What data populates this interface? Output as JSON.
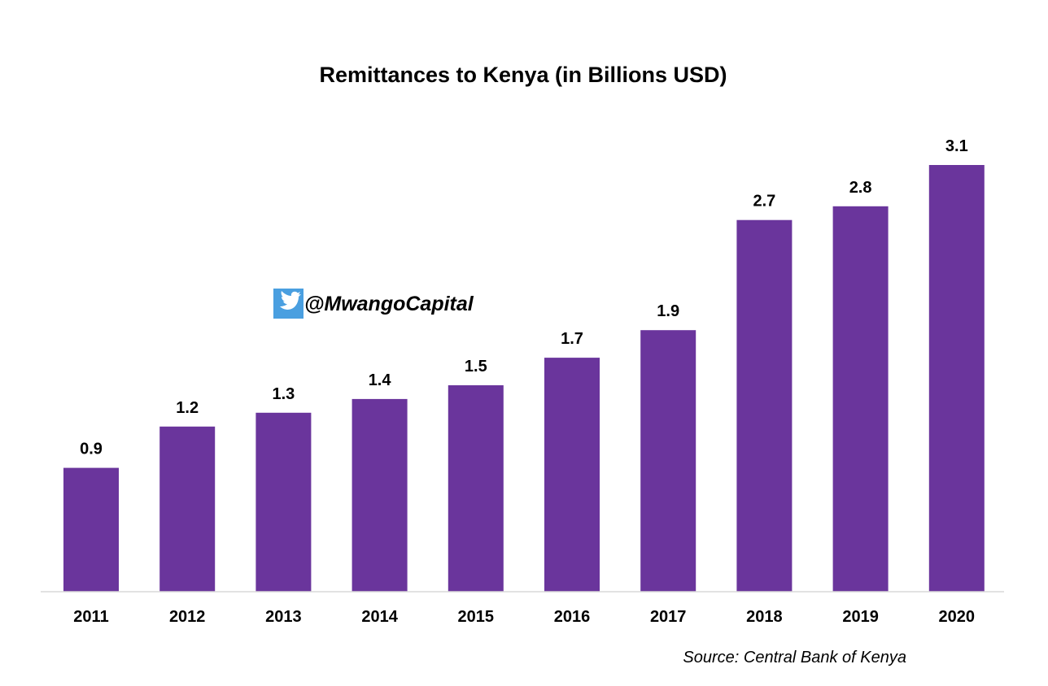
{
  "chart_data": {
    "type": "bar",
    "title": "Remittances to Kenya (in Billions USD)",
    "categories": [
      "2011",
      "2012",
      "2013",
      "2014",
      "2015",
      "2016",
      "2017",
      "2018",
      "2019",
      "2020"
    ],
    "values": [
      0.9,
      1.2,
      1.3,
      1.4,
      1.5,
      1.7,
      1.9,
      2.7,
      2.8,
      3.1
    ],
    "data_labels": [
      "0.9",
      "1.2",
      "1.3",
      "1.4",
      "1.5",
      "1.7",
      "1.9",
      "2.7",
      "2.8",
      "3.1"
    ],
    "xlabel": "",
    "ylabel": "",
    "ylim": [
      0,
      3.1
    ],
    "grid": false,
    "legend": "none",
    "bar_color": "#6a359c",
    "source": "Source: Central Bank of Kenya"
  },
  "watermark": {
    "icon": "twitter-bird-icon",
    "icon_color": "#4a9fe0",
    "handle": "@MwangoCapital"
  }
}
